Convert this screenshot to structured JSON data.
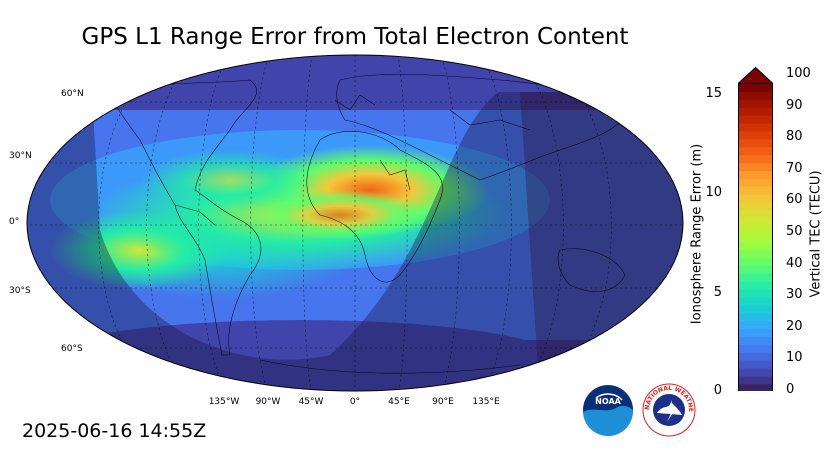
{
  "title": "GPS L1 Range Error from Total Electron Content",
  "timestamp": "2025-06-16 14:55Z",
  "map": {
    "projection": "robinson",
    "lat_labels": [
      "60°N",
      "30°N",
      "0°",
      "30°S",
      "60°S"
    ],
    "lon_labels": [
      "135°W",
      "90°W",
      "45°W",
      "0°",
      "45°E",
      "90°E",
      "135°E"
    ],
    "gridlines": "dotted",
    "night_side": "east"
  },
  "colorbar": {
    "left_label": "Ionosphere Range Error (m)",
    "right_label": "Vertical TEC (TECU)",
    "left_ticks": [
      "0",
      "5",
      "10",
      "15"
    ],
    "right_ticks": [
      "0",
      "10",
      "20",
      "30",
      "40",
      "50",
      "60",
      "70",
      "80",
      "90",
      "100"
    ],
    "extend": "max",
    "colormap": [
      "#30123b",
      "#4145ab",
      "#4675ed",
      "#39a2fc",
      "#1bcfd4",
      "#24eca6",
      "#61fc6c",
      "#a4fc3b",
      "#d1e834",
      "#f3c63a",
      "#fe9b2d",
      "#f36315",
      "#d93806",
      "#b11901",
      "#7a0403"
    ]
  },
  "logos": {
    "noaa": "NOAA",
    "nws": "NATIONAL WEATHER SERVICE"
  }
}
